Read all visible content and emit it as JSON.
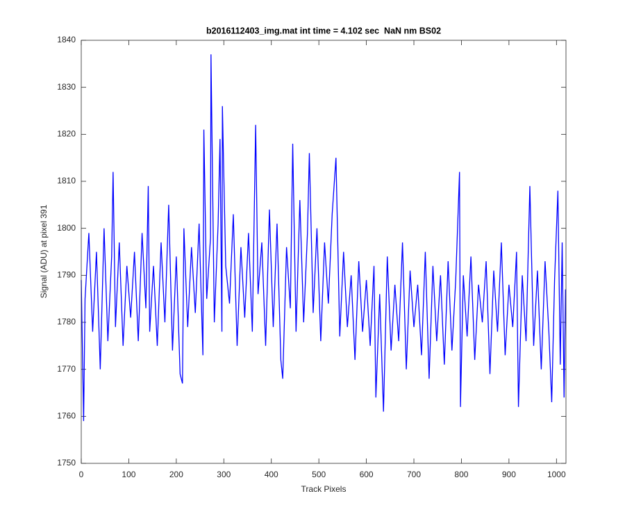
{
  "chart_data": {
    "type": "line",
    "title": "b2016112403_img.mat int time = 4.102 sec  NaN nm BS02",
    "x_label": "Track Pixels",
    "y_label": "Signal (ADU) at pixel 391",
    "x": [
      0,
      5,
      8,
      16,
      24,
      32,
      40,
      48,
      56,
      64,
      67,
      72,
      80,
      88,
      96,
      104,
      112,
      120,
      128,
      136,
      141,
      144,
      152,
      160,
      168,
      176,
      184,
      192,
      200,
      208,
      213,
      216,
      224,
      232,
      240,
      248,
      256,
      258,
      264,
      272,
      273,
      280,
      288,
      292,
      296,
      297,
      304,
      312,
      320,
      328,
      336,
      344,
      352,
      360,
      367,
      372,
      380,
      388,
      396,
      404,
      412,
      420,
      424,
      432,
      440,
      445,
      452,
      460,
      468,
      476,
      480,
      488,
      496,
      504,
      512,
      520,
      528,
      536,
      544,
      552,
      560,
      568,
      576,
      584,
      592,
      600,
      608,
      616,
      620,
      628,
      636,
      644,
      652,
      660,
      668,
      676,
      684,
      692,
      700,
      708,
      716,
      724,
      732,
      740,
      748,
      756,
      764,
      772,
      780,
      788,
      796,
      798,
      804,
      812,
      820,
      828,
      836,
      844,
      852,
      860,
      868,
      876,
      884,
      892,
      900,
      908,
      916,
      920,
      928,
      936,
      944,
      952,
      960,
      968,
      976,
      984,
      990,
      996,
      1003,
      1008,
      1012,
      1016,
      1019
    ],
    "values": [
      1789,
      1759,
      1785,
      1799,
      1778,
      1795,
      1770,
      1800,
      1776,
      1794,
      1812,
      1779,
      1797,
      1775,
      1792,
      1781,
      1795,
      1776,
      1799,
      1783,
      1809,
      1778,
      1792,
      1775,
      1797,
      1780,
      1805,
      1774,
      1794,
      1769,
      1767,
      1800,
      1779,
      1796,
      1782,
      1801,
      1773,
      1821,
      1785,
      1798,
      1837,
      1780,
      1801,
      1819,
      1778,
      1826,
      1792,
      1784,
      1803,
      1775,
      1796,
      1781,
      1799,
      1778,
      1822,
      1786,
      1797,
      1775,
      1804,
      1779,
      1801,
      1772,
      1768,
      1796,
      1783,
      1818,
      1778,
      1806,
      1780,
      1799,
      1816,
      1782,
      1800,
      1776,
      1797,
      1784,
      1803,
      1815,
      1777,
      1795,
      1779,
      1790,
      1772,
      1793,
      1778,
      1789,
      1775,
      1792,
      1764,
      1786,
      1761,
      1794,
      1774,
      1788,
      1776,
      1797,
      1770,
      1791,
      1779,
      1788,
      1773,
      1795,
      1768,
      1792,
      1776,
      1790,
      1771,
      1793,
      1774,
      1789,
      1812,
      1762,
      1790,
      1777,
      1794,
      1772,
      1788,
      1780,
      1793,
      1769,
      1791,
      1778,
      1797,
      1773,
      1788,
      1779,
      1795,
      1762,
      1790,
      1776,
      1809,
      1775,
      1791,
      1770,
      1793,
      1778,
      1763,
      1789,
      1808,
      1771,
      1797,
      1764,
      1787
    ],
    "color": "#0000ff",
    "xlim": [
      0,
      1020
    ],
    "xticks": [
      0,
      100,
      200,
      300,
      400,
      500,
      600,
      700,
      800,
      900,
      1000
    ],
    "ylim": [
      1750,
      1840
    ],
    "yticks": [
      1750,
      1760,
      1770,
      1780,
      1790,
      1800,
      1810,
      1820,
      1830,
      1840
    ],
    "grid": false
  }
}
